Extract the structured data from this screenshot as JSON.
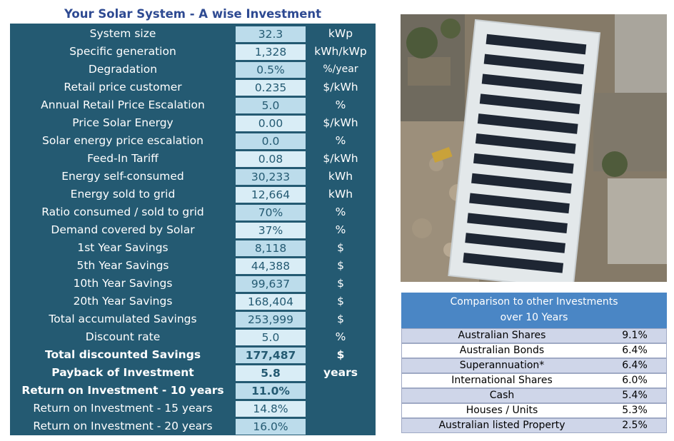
{
  "title": "Your Solar System - A wise Investment",
  "rows": [
    {
      "label": "System size",
      "value": "32.3",
      "unit": "kWp"
    },
    {
      "label": "Specific generation",
      "value": "1,328",
      "unit": "kWh/kWp"
    },
    {
      "label": "Degradation",
      "value": "0.5%",
      "unit": "%/year"
    },
    {
      "label": "Retail price customer",
      "value": "0.235",
      "unit": "$/kWh"
    },
    {
      "label": "Annual Retail Price Escalation",
      "value": "5.0",
      "unit": "%"
    },
    {
      "label": "Price Solar Energy",
      "value": "0.00",
      "unit": "$/kWh"
    },
    {
      "label": "Solar energy price escalation",
      "value": "0.0",
      "unit": "%"
    },
    {
      "label": "Feed-In Tariff",
      "value": "0.08",
      "unit": "$/kWh"
    },
    {
      "label": "Energy self-consumed",
      "value": "30,233",
      "unit": "kWh"
    },
    {
      "label": "Energy sold to grid",
      "value": "12,664",
      "unit": "kWh"
    },
    {
      "label": "Ratio consumed / sold to grid",
      "value": "70%",
      "unit": "%"
    },
    {
      "label": "Demand covered by Solar",
      "value": "37%",
      "unit": "%"
    },
    {
      "label": "1st Year Savings",
      "value": "8,118",
      "unit": "$"
    },
    {
      "label": "5th Year Savings",
      "value": "44,388",
      "unit": "$"
    },
    {
      "label": "10th Year Savings",
      "value": "99,637",
      "unit": "$"
    },
    {
      "label": "20th Year Savings",
      "value": "168,404",
      "unit": "$"
    },
    {
      "label": "Total accumulated Savings",
      "value": "253,999",
      "unit": "$"
    },
    {
      "label": "Discount rate",
      "value": "5.0",
      "unit": "%"
    },
    {
      "label": "Total discounted Savings",
      "value": "177,487",
      "unit": "$"
    },
    {
      "label": "Payback of Investment",
      "value": "5.8",
      "unit": "years"
    },
    {
      "label": "Return on Investment - 10 years",
      "value": "11.0%",
      "unit": ""
    },
    {
      "label": "Return on Investment - 15 years",
      "value": "14.8%",
      "unit": ""
    },
    {
      "label": "Return on Investment - 20 years",
      "value": "16.0%",
      "unit": ""
    }
  ],
  "comparison": {
    "header_line1": "Comparison to other Investments",
    "header_line2": "over 10 Years",
    "items": [
      {
        "name": "Australian Shares",
        "pct": "9.1%"
      },
      {
        "name": "Australian Bonds",
        "pct": "6.4%"
      },
      {
        "name": "Superannuation*",
        "pct": "6.4%"
      },
      {
        "name": "International Shares",
        "pct": "6.0%"
      },
      {
        "name": "Cash",
        "pct": "5.4%"
      },
      {
        "name": "Houses / Units",
        "pct": "5.3%"
      },
      {
        "name": "Australian listed Property",
        "pct": "2.5%"
      }
    ]
  },
  "colors": {
    "panel": "#245a72",
    "value_cell": "#bcdceb",
    "title": "#2e4a92",
    "compare_header": "#4a86c5",
    "compare_alt": "#cfd6e9"
  }
}
